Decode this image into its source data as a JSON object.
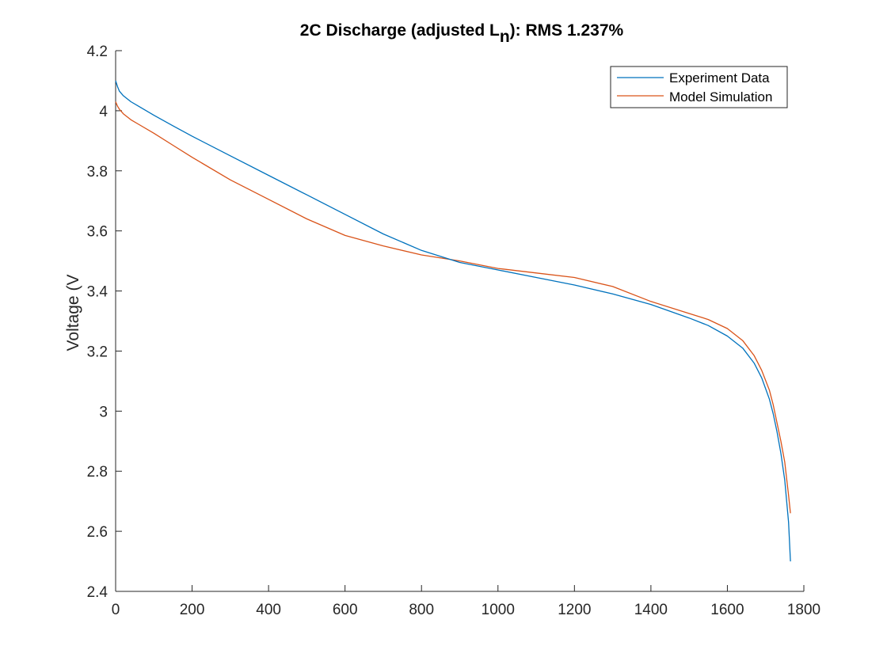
{
  "chart_data": {
    "type": "line",
    "title": {
      "prefix": "2C Discharge (adjusted L",
      "subscript": "n",
      "suffix": "): RMS 1.237%"
    },
    "xlabel": "",
    "ylabel": "Voltage (V",
    "xlim": [
      0,
      1800
    ],
    "ylim": [
      2.4,
      4.2
    ],
    "xticks": [
      0,
      200,
      400,
      600,
      800,
      1000,
      1200,
      1400,
      1600,
      1800
    ],
    "yticks": [
      2.4,
      2.6,
      2.8,
      3.0,
      3.2,
      3.4,
      3.6,
      3.8,
      4.0,
      4.2
    ],
    "xtick_labels": [
      "0",
      "200",
      "400",
      "600",
      "800",
      "1000",
      "1200",
      "1400",
      "1600",
      "1800"
    ],
    "ytick_labels": [
      "2.4",
      "2.6",
      "2.8",
      "3",
      "3.2",
      "3.4",
      "3.6",
      "3.8",
      "4",
      "4.2"
    ],
    "grid": false,
    "legend_position": "top-right",
    "series": [
      {
        "name": "Experiment Data",
        "color": "#0072BD",
        "x": [
          0,
          5,
          10,
          20,
          40,
          60,
          100,
          150,
          200,
          300,
          400,
          500,
          600,
          700,
          800,
          900,
          1000,
          1100,
          1200,
          1300,
          1400,
          1500,
          1550,
          1600,
          1640,
          1670,
          1690,
          1710,
          1720,
          1730,
          1740,
          1750,
          1760,
          1765
        ],
        "y": [
          4.1,
          4.08,
          4.065,
          4.05,
          4.03,
          4.015,
          3.985,
          3.95,
          3.915,
          3.85,
          3.785,
          3.72,
          3.655,
          3.59,
          3.535,
          3.495,
          3.47,
          3.445,
          3.42,
          3.39,
          3.355,
          3.31,
          3.285,
          3.25,
          3.21,
          3.16,
          3.11,
          3.04,
          2.99,
          2.93,
          2.86,
          2.77,
          2.63,
          2.5
        ]
      },
      {
        "name": "Model Simulation",
        "color": "#D95319",
        "x": [
          0,
          5,
          10,
          20,
          40,
          60,
          100,
          150,
          200,
          300,
          400,
          500,
          600,
          700,
          800,
          900,
          1000,
          1100,
          1200,
          1300,
          1400,
          1500,
          1550,
          1600,
          1640,
          1670,
          1690,
          1710,
          1720,
          1730,
          1740,
          1750,
          1760,
          1765
        ],
        "y": [
          4.03,
          4.015,
          4.005,
          3.99,
          3.97,
          3.955,
          3.925,
          3.885,
          3.845,
          3.77,
          3.705,
          3.64,
          3.585,
          3.55,
          3.52,
          3.5,
          3.475,
          3.46,
          3.445,
          3.415,
          3.365,
          3.325,
          3.305,
          3.275,
          3.235,
          3.185,
          3.135,
          3.07,
          3.02,
          2.96,
          2.9,
          2.83,
          2.72,
          2.66
        ]
      }
    ]
  }
}
